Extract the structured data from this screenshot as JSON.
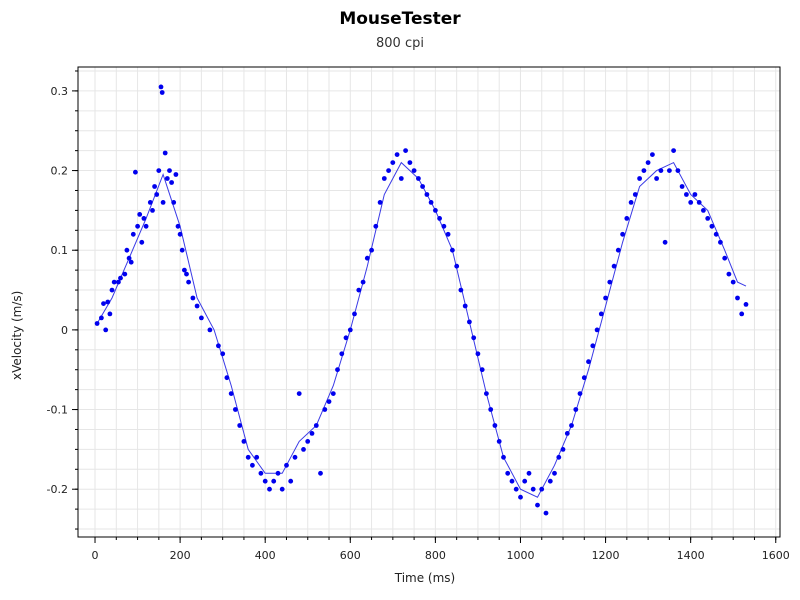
{
  "chart_data": {
    "type": "scatter",
    "title": "MouseTester",
    "subtitle": "800 cpi",
    "xlabel": "Time (ms)",
    "ylabel": "xVelocity (m/s)",
    "xlim": [
      -40,
      1610
    ],
    "ylim": [
      -0.26,
      0.33
    ],
    "xticks": [
      0,
      200,
      400,
      600,
      800,
      1000,
      1200,
      1400,
      1600
    ],
    "xtick_labels": [
      "0",
      "200",
      "400",
      "600",
      "800",
      "1000",
      "1200",
      "1400",
      "1600"
    ],
    "yticks": [
      -0.2,
      -0.1,
      0,
      0.1,
      0.2,
      0.3
    ],
    "ytick_labels": [
      "-0.2",
      "-0.1",
      "0",
      "0.1",
      "0.2",
      "0.3"
    ],
    "grid": true,
    "colors": {
      "points": "#0000ee",
      "line": "#3a3ae6",
      "grid": "#e6e6e6",
      "axis": "#000000"
    },
    "series": [
      {
        "type": "scatter",
        "points": [
          [
            5,
            0.008
          ],
          [
            15,
            0.015
          ],
          [
            20,
            0.033
          ],
          [
            25,
            0.0
          ],
          [
            30,
            0.035
          ],
          [
            35,
            0.02
          ],
          [
            40,
            0.05
          ],
          [
            45,
            0.06
          ],
          [
            55,
            0.06
          ],
          [
            60,
            0.065
          ],
          [
            70,
            0.07
          ],
          [
            75,
            0.1
          ],
          [
            80,
            0.09
          ],
          [
            85,
            0.085
          ],
          [
            90,
            0.12
          ],
          [
            95,
            0.198
          ],
          [
            100,
            0.13
          ],
          [
            105,
            0.145
          ],
          [
            110,
            0.11
          ],
          [
            115,
            0.14
          ],
          [
            120,
            0.13
          ],
          [
            130,
            0.16
          ],
          [
            135,
            0.15
          ],
          [
            140,
            0.18
          ],
          [
            145,
            0.17
          ],
          [
            150,
            0.2
          ],
          [
            155,
            0.305
          ],
          [
            158,
            0.298
          ],
          [
            160,
            0.16
          ],
          [
            165,
            0.222
          ],
          [
            170,
            0.19
          ],
          [
            175,
            0.2
          ],
          [
            180,
            0.185
          ],
          [
            185,
            0.16
          ],
          [
            190,
            0.195
          ],
          [
            195,
            0.13
          ],
          [
            200,
            0.12
          ],
          [
            205,
            0.1
          ],
          [
            210,
            0.075
          ],
          [
            215,
            0.07
          ],
          [
            220,
            0.06
          ],
          [
            230,
            0.04
          ],
          [
            240,
            0.03
          ],
          [
            250,
            0.015
          ],
          [
            270,
            0.0
          ],
          [
            290,
            -0.02
          ],
          [
            300,
            -0.03
          ],
          [
            310,
            -0.06
          ],
          [
            320,
            -0.08
          ],
          [
            330,
            -0.1
          ],
          [
            340,
            -0.12
          ],
          [
            350,
            -0.14
          ],
          [
            360,
            -0.16
          ],
          [
            370,
            -0.17
          ],
          [
            380,
            -0.16
          ],
          [
            390,
            -0.18
          ],
          [
            400,
            -0.19
          ],
          [
            410,
            -0.2
          ],
          [
            420,
            -0.19
          ],
          [
            430,
            -0.18
          ],
          [
            440,
            -0.2
          ],
          [
            450,
            -0.17
          ],
          [
            460,
            -0.19
          ],
          [
            470,
            -0.16
          ],
          [
            480,
            -0.08
          ],
          [
            490,
            -0.15
          ],
          [
            500,
            -0.14
          ],
          [
            510,
            -0.13
          ],
          [
            520,
            -0.12
          ],
          [
            530,
            -0.18
          ],
          [
            540,
            -0.1
          ],
          [
            550,
            -0.09
          ],
          [
            560,
            -0.08
          ],
          [
            570,
            -0.05
          ],
          [
            580,
            -0.03
          ],
          [
            590,
            -0.01
          ],
          [
            600,
            0.0
          ],
          [
            610,
            0.02
          ],
          [
            620,
            0.05
          ],
          [
            630,
            0.06
          ],
          [
            640,
            0.09
          ],
          [
            650,
            0.1
          ],
          [
            660,
            0.13
          ],
          [
            670,
            0.16
          ],
          [
            680,
            0.19
          ],
          [
            690,
            0.2
          ],
          [
            700,
            0.21
          ],
          [
            710,
            0.22
          ],
          [
            720,
            0.19
          ],
          [
            730,
            0.225
          ],
          [
            740,
            0.21
          ],
          [
            750,
            0.2
          ],
          [
            760,
            0.19
          ],
          [
            770,
            0.18
          ],
          [
            780,
            0.17
          ],
          [
            790,
            0.16
          ],
          [
            800,
            0.15
          ],
          [
            810,
            0.14
          ],
          [
            820,
            0.13
          ],
          [
            830,
            0.12
          ],
          [
            840,
            0.1
          ],
          [
            850,
            0.08
          ],
          [
            860,
            0.05
          ],
          [
            870,
            0.03
          ],
          [
            880,
            0.01
          ],
          [
            890,
            -0.01
          ],
          [
            900,
            -0.03
          ],
          [
            910,
            -0.05
          ],
          [
            920,
            -0.08
          ],
          [
            930,
            -0.1
          ],
          [
            940,
            -0.12
          ],
          [
            950,
            -0.14
          ],
          [
            960,
            -0.16
          ],
          [
            970,
            -0.18
          ],
          [
            980,
            -0.19
          ],
          [
            990,
            -0.2
          ],
          [
            1000,
            -0.21
          ],
          [
            1010,
            -0.19
          ],
          [
            1020,
            -0.18
          ],
          [
            1030,
            -0.2
          ],
          [
            1040,
            -0.22
          ],
          [
            1050,
            -0.2
          ],
          [
            1060,
            -0.23
          ],
          [
            1070,
            -0.19
          ],
          [
            1080,
            -0.18
          ],
          [
            1090,
            -0.16
          ],
          [
            1100,
            -0.15
          ],
          [
            1110,
            -0.13
          ],
          [
            1120,
            -0.12
          ],
          [
            1130,
            -0.1
          ],
          [
            1140,
            -0.08
          ],
          [
            1150,
            -0.06
          ],
          [
            1160,
            -0.04
          ],
          [
            1170,
            -0.02
          ],
          [
            1180,
            0.0
          ],
          [
            1190,
            0.02
          ],
          [
            1200,
            0.04
          ],
          [
            1210,
            0.06
          ],
          [
            1220,
            0.08
          ],
          [
            1230,
            0.1
          ],
          [
            1240,
            0.12
          ],
          [
            1250,
            0.14
          ],
          [
            1260,
            0.16
          ],
          [
            1270,
            0.17
          ],
          [
            1280,
            0.19
          ],
          [
            1290,
            0.2
          ],
          [
            1300,
            0.21
          ],
          [
            1310,
            0.22
          ],
          [
            1320,
            0.19
          ],
          [
            1330,
            0.2
          ],
          [
            1340,
            0.11
          ],
          [
            1350,
            0.2
          ],
          [
            1360,
            0.225
          ],
          [
            1370,
            0.2
          ],
          [
            1380,
            0.18
          ],
          [
            1390,
            0.17
          ],
          [
            1400,
            0.16
          ],
          [
            1410,
            0.17
          ],
          [
            1420,
            0.16
          ],
          [
            1430,
            0.15
          ],
          [
            1440,
            0.14
          ],
          [
            1450,
            0.13
          ],
          [
            1460,
            0.12
          ],
          [
            1470,
            0.11
          ],
          [
            1480,
            0.09
          ],
          [
            1490,
            0.07
          ],
          [
            1500,
            0.06
          ],
          [
            1510,
            0.04
          ],
          [
            1520,
            0.02
          ],
          [
            1530,
            0.032
          ]
        ]
      },
      {
        "type": "line",
        "points": [
          [
            5,
            0.008
          ],
          [
            40,
            0.04
          ],
          [
            80,
            0.09
          ],
          [
            120,
            0.14
          ],
          [
            160,
            0.195
          ],
          [
            200,
            0.13
          ],
          [
            240,
            0.04
          ],
          [
            280,
            0.0
          ],
          [
            320,
            -0.07
          ],
          [
            360,
            -0.15
          ],
          [
            400,
            -0.18
          ],
          [
            440,
            -0.18
          ],
          [
            480,
            -0.14
          ],
          [
            520,
            -0.12
          ],
          [
            560,
            -0.07
          ],
          [
            600,
            0.0
          ],
          [
            640,
            0.08
          ],
          [
            680,
            0.17
          ],
          [
            720,
            0.21
          ],
          [
            760,
            0.19
          ],
          [
            800,
            0.15
          ],
          [
            840,
            0.1
          ],
          [
            880,
            0.01
          ],
          [
            920,
            -0.08
          ],
          [
            960,
            -0.16
          ],
          [
            1000,
            -0.2
          ],
          [
            1040,
            -0.21
          ],
          [
            1080,
            -0.17
          ],
          [
            1120,
            -0.12
          ],
          [
            1160,
            -0.05
          ],
          [
            1200,
            0.03
          ],
          [
            1240,
            0.11
          ],
          [
            1280,
            0.18
          ],
          [
            1320,
            0.2
          ],
          [
            1360,
            0.21
          ],
          [
            1400,
            0.17
          ],
          [
            1440,
            0.15
          ],
          [
            1480,
            0.1
          ],
          [
            1510,
            0.06
          ],
          [
            1530,
            0.055
          ]
        ]
      }
    ]
  }
}
